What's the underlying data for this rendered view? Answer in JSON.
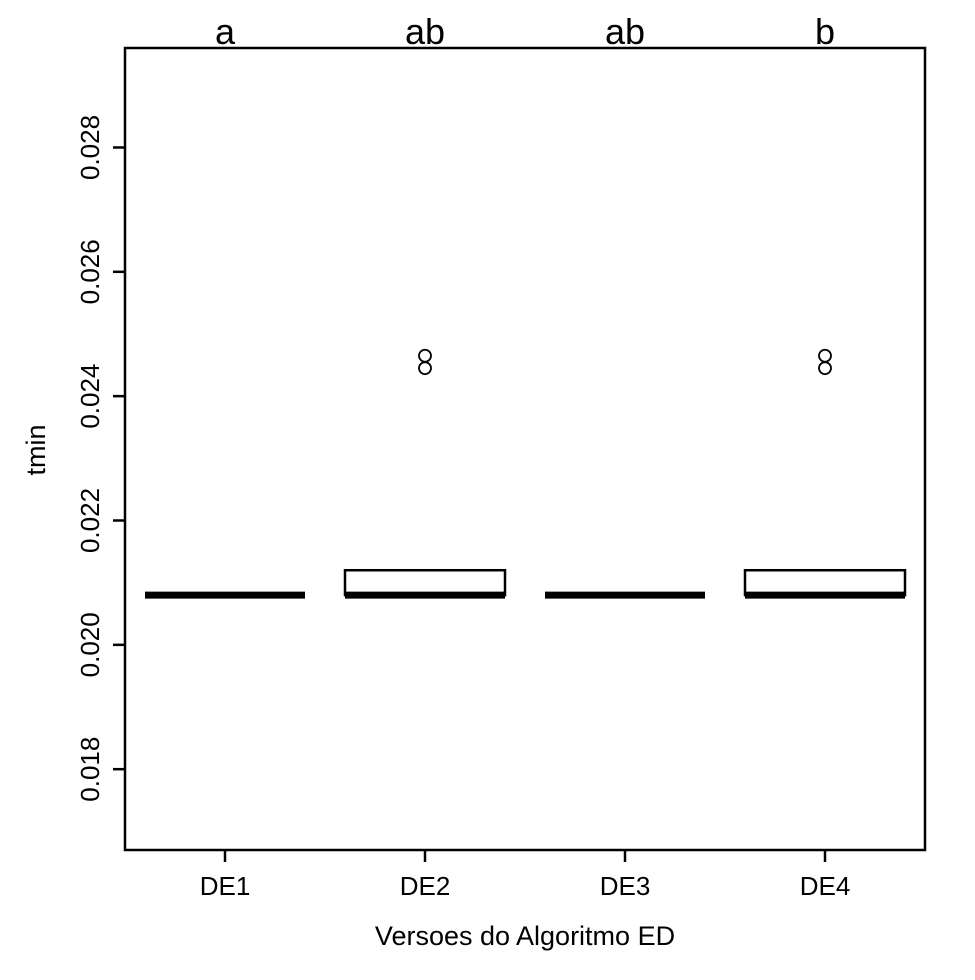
{
  "chart_data": {
    "type": "boxplot",
    "xlabel": "Versoes do Algoritmo ED",
    "ylabel": "tmin",
    "ylim": [
      0.0167,
      0.0296
    ],
    "yticks": [
      "0.018",
      "0.020",
      "0.022",
      "0.024",
      "0.026",
      "0.028"
    ],
    "ytick_values": [
      0.018,
      0.02,
      0.022,
      0.024,
      0.026,
      0.028
    ],
    "grid": false,
    "categories": [
      "DE1",
      "DE2",
      "DE3",
      "DE4"
    ],
    "group_letters": [
      "a",
      "ab",
      "ab",
      "b"
    ],
    "boxes": [
      {
        "name": "DE1",
        "min": 0.0208,
        "q1": 0.0208,
        "median": 0.0208,
        "q3": 0.0208,
        "max": 0.0208,
        "outliers": []
      },
      {
        "name": "DE2",
        "min": 0.0208,
        "q1": 0.0208,
        "median": 0.0208,
        "q3": 0.0212,
        "max": 0.0212,
        "outliers": [
          0.02445,
          0.02465
        ]
      },
      {
        "name": "DE3",
        "min": 0.0208,
        "q1": 0.0208,
        "median": 0.0208,
        "q3": 0.0208,
        "max": 0.0208,
        "outliers": []
      },
      {
        "name": "DE4",
        "min": 0.0208,
        "q1": 0.0208,
        "median": 0.0208,
        "q3": 0.0212,
        "max": 0.0212,
        "outliers": [
          0.02445,
          0.02465
        ]
      }
    ]
  }
}
